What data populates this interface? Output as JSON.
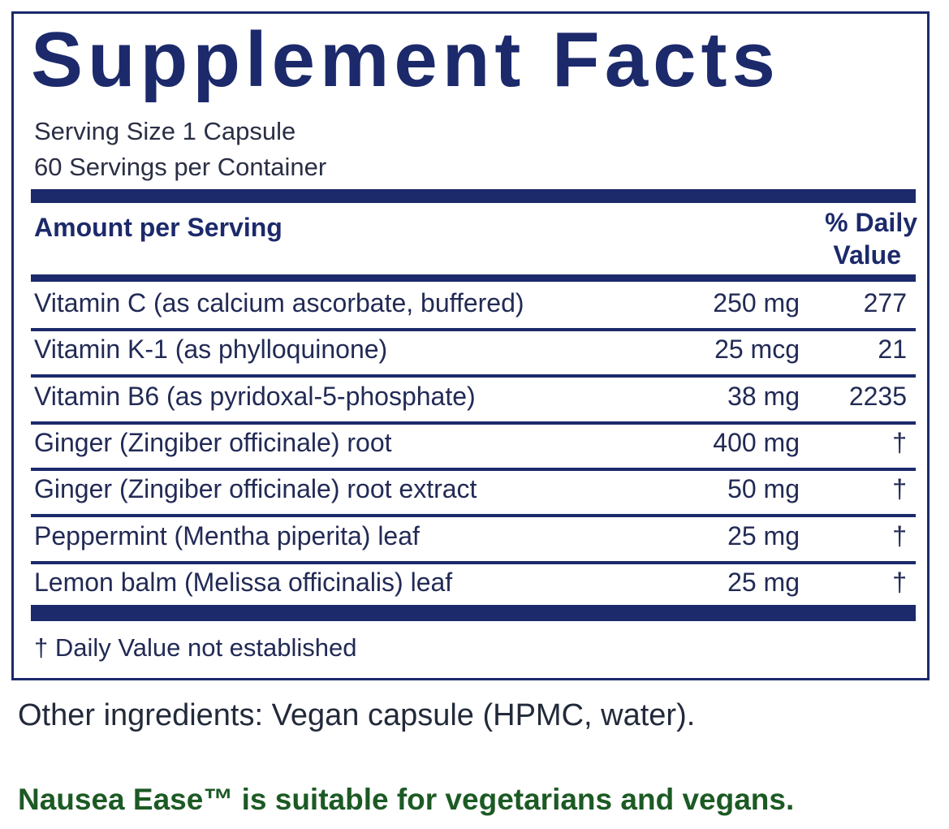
{
  "title": "Supplement Facts",
  "serving_size": "Serving Size 1 Capsule",
  "servings_per_container": "60 Servings per Container",
  "header": {
    "amount": "Amount per Serving",
    "dv": [
      "% Daily",
      "Value"
    ]
  },
  "rows": [
    [
      "Vitamin C (as calcium ascorbate, buffered)",
      "250 mg",
      "277"
    ],
    [
      "Vitamin K-1 (as phylloquinone)",
      "25 mcg",
      "21"
    ],
    [
      "Vitamin B6 (as pyridoxal-5-phosphate)",
      "38 mg",
      "2235"
    ],
    [
      "Ginger (Zingiber officinale) root",
      "400 mg",
      "†"
    ],
    [
      "Ginger (Zingiber officinale) root extract",
      "50 mg",
      "†"
    ],
    [
      "Peppermint (Mentha piperita) leaf",
      "25 mg",
      "†"
    ],
    [
      "Lemon balm (Melissa officinalis) leaf",
      "25 mg",
      "†"
    ]
  ],
  "footnote": "† Daily Value not established",
  "other_ingredients": "Other ingredients: Vegan capsule (HPMC, water).",
  "note": "Nausea Ease™ is suitable for vegetarians and vegans."
}
